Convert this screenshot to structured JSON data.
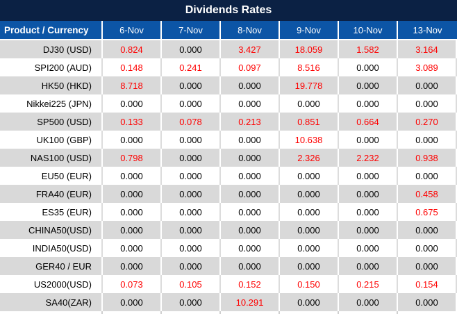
{
  "title": "Dividends Rates",
  "colors": {
    "title_bg": "#0B2144",
    "header_bg": "#0C55A6",
    "stripe_gray": "#D9D9D9",
    "zero_text": "#000000",
    "nonzero_text": "#FE0000"
  },
  "table": {
    "corner_header": "Product / Currency",
    "date_headers": [
      "6-Nov",
      "7-Nov",
      "8-Nov",
      "9-Nov",
      "10-Nov",
      "13-Nov"
    ],
    "rows": [
      {
        "product": "DJ30 (USD)",
        "values": [
          "0.824",
          "0.000",
          "3.427",
          "18.059",
          "1.582",
          "3.164"
        ]
      },
      {
        "product": "SPI200 (AUD)",
        "values": [
          "0.148",
          "0.241",
          "0.097",
          "8.516",
          "0.000",
          "3.089"
        ]
      },
      {
        "product": "HK50 (HKD)",
        "values": [
          "8.718",
          "0.000",
          "0.000",
          "19.778",
          "0.000",
          "0.000"
        ]
      },
      {
        "product": "Nikkei225 (JPN)",
        "values": [
          "0.000",
          "0.000",
          "0.000",
          "0.000",
          "0.000",
          "0.000"
        ]
      },
      {
        "product": "SP500 (USD)",
        "values": [
          "0.133",
          "0.078",
          "0.213",
          "0.851",
          "0.664",
          "0.270"
        ]
      },
      {
        "product": "UK100 (GBP)",
        "values": [
          "0.000",
          "0.000",
          "0.000",
          "10.638",
          "0.000",
          "0.000"
        ]
      },
      {
        "product": "NAS100 (USD)",
        "values": [
          "0.798",
          "0.000",
          "0.000",
          "2.326",
          "2.232",
          "0.938"
        ]
      },
      {
        "product": "EU50 (EUR)",
        "values": [
          "0.000",
          "0.000",
          "0.000",
          "0.000",
          "0.000",
          "0.000"
        ]
      },
      {
        "product": "FRA40 (EUR)",
        "values": [
          "0.000",
          "0.000",
          "0.000",
          "0.000",
          "0.000",
          "0.458"
        ]
      },
      {
        "product": "ES35 (EUR)",
        "values": [
          "0.000",
          "0.000",
          "0.000",
          "0.000",
          "0.000",
          "0.675"
        ]
      },
      {
        "product": "CHINA50(USD)",
        "values": [
          "0.000",
          "0.000",
          "0.000",
          "0.000",
          "0.000",
          "0.000"
        ]
      },
      {
        "product": "INDIA50(USD)",
        "values": [
          "0.000",
          "0.000",
          "0.000",
          "0.000",
          "0.000",
          "0.000"
        ]
      },
      {
        "product": "GER40 / EUR",
        "values": [
          "0.000",
          "0.000",
          "0.000",
          "0.000",
          "0.000",
          "0.000"
        ]
      },
      {
        "product": "US2000(USD)",
        "values": [
          "0.073",
          "0.105",
          "0.152",
          "0.150",
          "0.215",
          "0.154"
        ]
      },
      {
        "product": "SA40(ZAR)",
        "values": [
          "0.000",
          "0.000",
          "10.291",
          "0.000",
          "0.000",
          "0.000"
        ]
      }
    ]
  },
  "chart_data": {
    "type": "table",
    "title": "Dividends Rates",
    "columns": [
      "Product / Currency",
      "6-Nov",
      "7-Nov",
      "8-Nov",
      "9-Nov",
      "10-Nov",
      "13-Nov"
    ],
    "rows": [
      [
        "DJ30 (USD)",
        0.824,
        0.0,
        3.427,
        18.059,
        1.582,
        3.164
      ],
      [
        "SPI200 (AUD)",
        0.148,
        0.241,
        0.097,
        8.516,
        0.0,
        3.089
      ],
      [
        "HK50 (HKD)",
        8.718,
        0.0,
        0.0,
        19.778,
        0.0,
        0.0
      ],
      [
        "Nikkei225 (JPN)",
        0.0,
        0.0,
        0.0,
        0.0,
        0.0,
        0.0
      ],
      [
        "SP500 (USD)",
        0.133,
        0.078,
        0.213,
        0.851,
        0.664,
        0.27
      ],
      [
        "UK100 (GBP)",
        0.0,
        0.0,
        0.0,
        10.638,
        0.0,
        0.0
      ],
      [
        "NAS100 (USD)",
        0.798,
        0.0,
        0.0,
        2.326,
        2.232,
        0.938
      ],
      [
        "EU50 (EUR)",
        0.0,
        0.0,
        0.0,
        0.0,
        0.0,
        0.0
      ],
      [
        "FRA40 (EUR)",
        0.0,
        0.0,
        0.0,
        0.0,
        0.0,
        0.458
      ],
      [
        "ES35 (EUR)",
        0.0,
        0.0,
        0.0,
        0.0,
        0.0,
        0.675
      ],
      [
        "CHINA50(USD)",
        0.0,
        0.0,
        0.0,
        0.0,
        0.0,
        0.0
      ],
      [
        "INDIA50(USD)",
        0.0,
        0.0,
        0.0,
        0.0,
        0.0,
        0.0
      ],
      [
        "GER40 / EUR",
        0.0,
        0.0,
        0.0,
        0.0,
        0.0,
        0.0
      ],
      [
        "US2000(USD)",
        0.073,
        0.105,
        0.152,
        0.15,
        0.215,
        0.154
      ],
      [
        "SA40(ZAR)",
        0.0,
        0.0,
        10.291,
        0.0,
        0.0,
        0.0
      ]
    ],
    "value_color_rule": "nonzero values rendered red (#FE0000), zero values black (#000000)",
    "layout": "striped rows alternating #D9D9D9 and #FFFFFF, dark navy title bar, blue header row"
  }
}
